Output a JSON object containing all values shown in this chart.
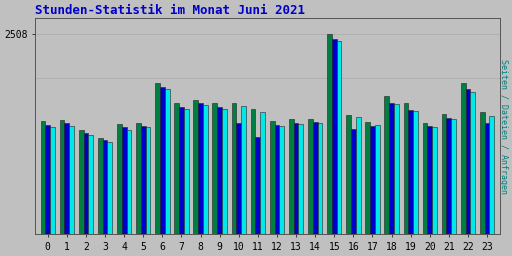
{
  "title": "Stunden-Statistik im Monat Juni 2021",
  "title_color": "#0000cc",
  "ylabel": "Seiten / Dateien / Anfragen",
  "ylabel_color": "#008080",
  "background_color": "#c0c0c0",
  "plot_bg_color": "#c0c0c0",
  "ymax": 2508,
  "ytick_label": "2508",
  "hours": [
    0,
    1,
    2,
    3,
    4,
    5,
    6,
    7,
    8,
    9,
    10,
    11,
    12,
    13,
    14,
    15,
    16,
    17,
    18,
    19,
    20,
    21,
    22,
    23
  ],
  "bar_width": 0.25,
  "colors": [
    "#008040",
    "#0000cc",
    "#00e8e8"
  ],
  "series_green": [
    1420,
    1430,
    1310,
    1210,
    1380,
    1400,
    1900,
    1640,
    1680,
    1640,
    1650,
    1570,
    1420,
    1440,
    1450,
    2508,
    1500,
    1410,
    1730,
    1640,
    1400,
    1510,
    1900,
    1530
  ],
  "series_blue": [
    1370,
    1390,
    1270,
    1180,
    1340,
    1360,
    1850,
    1600,
    1640,
    1600,
    1400,
    1220,
    1375,
    1400,
    1410,
    2450,
    1320,
    1360,
    1650,
    1560,
    1355,
    1460,
    1820,
    1400
  ],
  "series_cyan": [
    1340,
    1360,
    1240,
    1160,
    1310,
    1340,
    1820,
    1570,
    1620,
    1570,
    1610,
    1530,
    1355,
    1380,
    1390,
    2420,
    1470,
    1365,
    1630,
    1545,
    1345,
    1440,
    1780,
    1480
  ],
  "grid_color": "#aaaaaa",
  "border_color": "#555555",
  "fig_width": 5.12,
  "fig_height": 2.56,
  "dpi": 100
}
